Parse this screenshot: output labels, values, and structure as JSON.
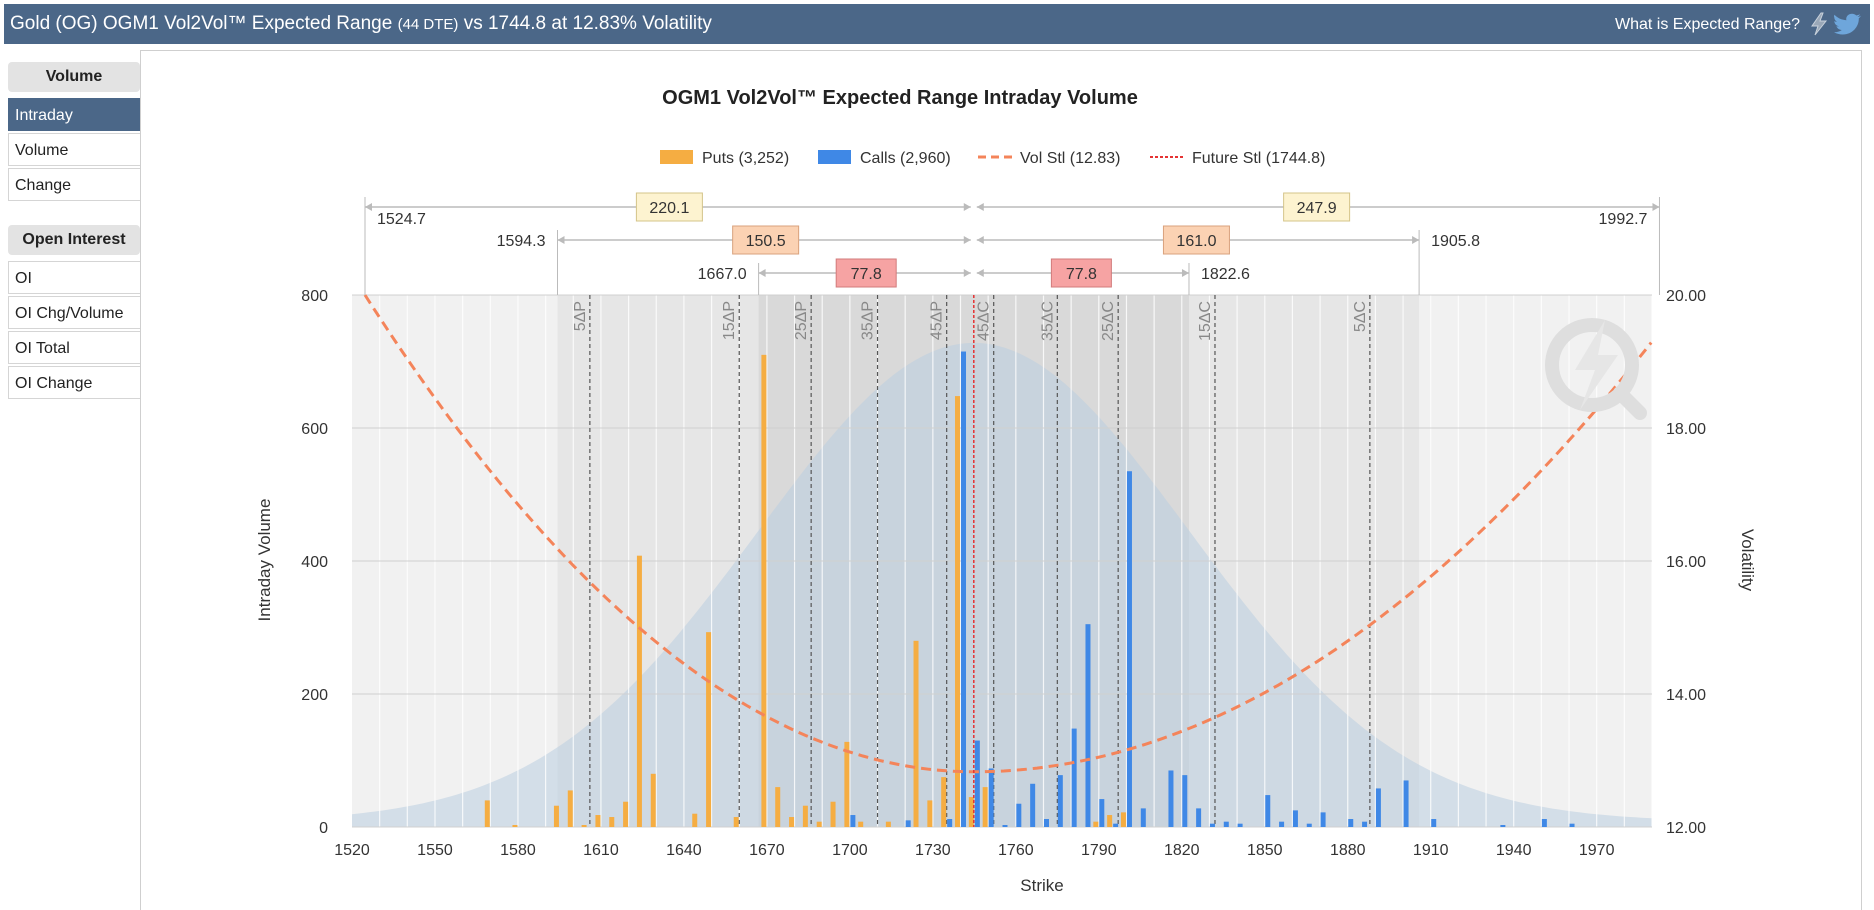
{
  "header": {
    "title_main": "Gold (OG) OGM1 Vol2Vol™ Expected Range",
    "title_dte": "(44 DTE)",
    "title_rest": "vs 1744.8 at 12.83% Volatility",
    "help_label": "What is Expected Range?",
    "icons": [
      "lightning-icon",
      "twitter-icon"
    ]
  },
  "sidebar": {
    "volume_heading": "Volume",
    "volume_items": [
      {
        "label": "Intraday",
        "active": true
      },
      {
        "label": "Volume",
        "active": false
      },
      {
        "label": "Change",
        "active": false
      }
    ],
    "oi_heading": "Open Interest",
    "oi_items": [
      {
        "label": "OI"
      },
      {
        "label": "OI Chg/Volume"
      },
      {
        "label": "OI Total"
      },
      {
        "label": "OI Change"
      }
    ]
  },
  "colors": {
    "puts": "#f5ad42",
    "calls": "#3f88e6",
    "vol": "#f4845a",
    "future": "#e53333",
    "header": "#4b6788"
  },
  "chart_data": {
    "type": "bar",
    "title": "OGM1 Vol2Vol™ Expected Range Intraday Volume",
    "xlabel": "Strike",
    "ylabel": "Intraday Volume",
    "y2label": "Volatility",
    "xlim": [
      1520,
      1990
    ],
    "ylim": [
      0,
      800
    ],
    "y2lim": [
      12,
      20
    ],
    "xticks": [
      1520,
      1550,
      1580,
      1610,
      1640,
      1670,
      1700,
      1730,
      1760,
      1790,
      1820,
      1850,
      1880,
      1910,
      1940,
      1970
    ],
    "yticks": [
      0,
      200,
      400,
      600,
      800
    ],
    "y2ticks": [
      "12.00",
      "14.00",
      "16.00",
      "18.00",
      "20.00"
    ],
    "legend": [
      {
        "label": "Puts (3,252)",
        "kind": "bar",
        "color": "#f5ad42"
      },
      {
        "label": "Calls (2,960)",
        "kind": "bar",
        "color": "#3f88e6"
      },
      {
        "label": "Vol Stl (12.83)",
        "kind": "dash",
        "color": "#f4845a"
      },
      {
        "label": "Future Stl (1744.8)",
        "kind": "dot",
        "color": "#e53333"
      }
    ],
    "puts": [
      [
        1570,
        40
      ],
      [
        1580,
        3
      ],
      [
        1595,
        32
      ],
      [
        1600,
        55
      ],
      [
        1605,
        3
      ],
      [
        1610,
        18
      ],
      [
        1615,
        15
      ],
      [
        1620,
        38
      ],
      [
        1625,
        408
      ],
      [
        1630,
        80
      ],
      [
        1645,
        20
      ],
      [
        1650,
        293
      ],
      [
        1660,
        15
      ],
      [
        1670,
        710
      ],
      [
        1675,
        60
      ],
      [
        1680,
        15
      ],
      [
        1685,
        32
      ],
      [
        1690,
        8
      ],
      [
        1695,
        38
      ],
      [
        1700,
        128
      ],
      [
        1705,
        8
      ],
      [
        1715,
        8
      ],
      [
        1725,
        280
      ],
      [
        1730,
        40
      ],
      [
        1735,
        75
      ],
      [
        1740,
        648
      ],
      [
        1745,
        45
      ],
      [
        1750,
        60
      ],
      [
        1790,
        8
      ],
      [
        1795,
        18
      ],
      [
        1800,
        22
      ]
    ],
    "calls": [
      [
        1700,
        18
      ],
      [
        1720,
        10
      ],
      [
        1735,
        12
      ],
      [
        1740,
        715
      ],
      [
        1745,
        130
      ],
      [
        1750,
        88
      ],
      [
        1755,
        3
      ],
      [
        1760,
        35
      ],
      [
        1765,
        65
      ],
      [
        1770,
        12
      ],
      [
        1775,
        78
      ],
      [
        1780,
        148
      ],
      [
        1785,
        305
      ],
      [
        1790,
        42
      ],
      [
        1795,
        5
      ],
      [
        1800,
        535
      ],
      [
        1805,
        28
      ],
      [
        1815,
        85
      ],
      [
        1820,
        78
      ],
      [
        1825,
        28
      ],
      [
        1830,
        5
      ],
      [
        1835,
        8
      ],
      [
        1840,
        5
      ],
      [
        1850,
        48
      ],
      [
        1855,
        8
      ],
      [
        1860,
        25
      ],
      [
        1865,
        5
      ],
      [
        1870,
        22
      ],
      [
        1880,
        12
      ],
      [
        1885,
        8
      ],
      [
        1890,
        58
      ],
      [
        1900,
        70
      ],
      [
        1910,
        12
      ],
      [
        1935,
        3
      ],
      [
        1950,
        12
      ],
      [
        1960,
        5
      ]
    ],
    "vol_curve": [
      [
        1524.7,
        20.0
      ],
      [
        1744.8,
        12.83
      ],
      [
        1990,
        19.3
      ]
    ],
    "future_settle": 1744.8,
    "delta_lines": [
      {
        "label": "5ΔP",
        "strike": 1606
      },
      {
        "label": "15ΔP",
        "strike": 1660
      },
      {
        "label": "25ΔP",
        "strike": 1686
      },
      {
        "label": "35ΔP",
        "strike": 1710
      },
      {
        "label": "45ΔP",
        "strike": 1735
      },
      {
        "label": "45ΔC",
        "strike": 1752
      },
      {
        "label": "35ΔC",
        "strike": 1775
      },
      {
        "label": "25ΔC",
        "strike": 1797
      },
      {
        "label": "15ΔC",
        "strike": 1832
      },
      {
        "label": "5ΔC",
        "strike": 1888
      }
    ],
    "ranges": [
      {
        "low": "1524.7",
        "high": "1992.7",
        "low_value": 1524.7,
        "high_value": 1992.7,
        "down": "220.1",
        "up": "247.9",
        "color": "#fdf3d0",
        "border": "#d4c48a"
      },
      {
        "low": "1594.3",
        "high": "1905.8",
        "low_value": 1594.3,
        "high_value": 1905.8,
        "down": "150.5",
        "up": "161.0",
        "color": "#fbd2b3",
        "border": "#d9a27d"
      },
      {
        "low": "1667.0",
        "high": "1822.6",
        "low_value": 1667.0,
        "high_value": 1822.6,
        "down": "77.8",
        "up": "77.8",
        "color": "#f6a3a3",
        "border": "#d27b7b"
      }
    ]
  }
}
